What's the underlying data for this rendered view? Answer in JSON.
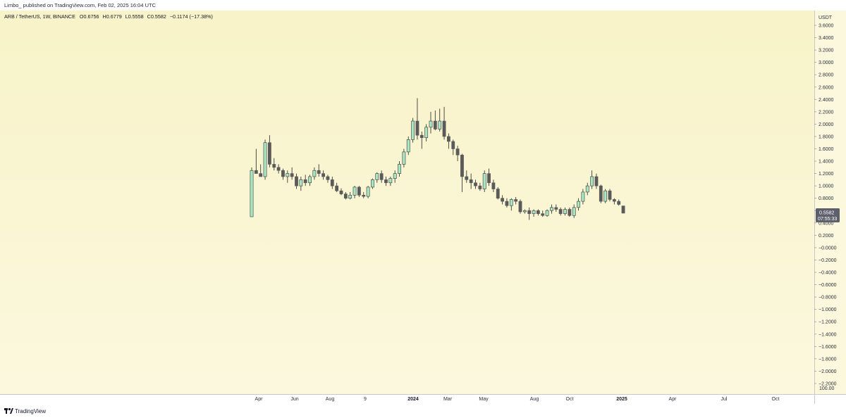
{
  "header": {
    "published": "Limbo_ published on TradingView.com, Feb 02, 2025 16:04 UTC",
    "symbol_line": "ARB / TetherUS, 1W, BINANCE",
    "ohlc": {
      "o_label": "O",
      "o": "0.6756",
      "h_label": "H",
      "h": "0.6779",
      "l_label": "L",
      "l": "0.5558",
      "c_label": "C",
      "c": "0.5582",
      "change": "−0.1174 (−17.38%)"
    }
  },
  "price_axis": {
    "unit": "USDT",
    "ticks": [
      "3.6000",
      "3.4000",
      "3.2000",
      "3.0000",
      "2.8000",
      "2.6000",
      "2.4000",
      "2.2000",
      "2.0000",
      "1.8000",
      "1.6000",
      "1.4000",
      "1.2000",
      "1.0000",
      "0.8000",
      "0.6000",
      "0.4000",
      "0.2000",
      "−0.0000",
      "−0.2000",
      "−0.4000",
      "−0.6000",
      "−0.8000",
      "−1.0000",
      "−1.2000",
      "−1.4000",
      "−1.6000",
      "−1.8000",
      "−2.0000",
      "−2.2000"
    ],
    "bottom_label": "100.00",
    "last_price": "0.5582",
    "countdown": "07:55:33"
  },
  "time_axis": {
    "labels": [
      {
        "text": "Apr",
        "bold": false
      },
      {
        "text": "Jun",
        "bold": false
      },
      {
        "text": "Aug",
        "bold": false
      },
      {
        "text": "9",
        "bold": false
      },
      {
        "text": "2024",
        "bold": true
      },
      {
        "text": "Mar",
        "bold": false
      },
      {
        "text": "May",
        "bold": false
      },
      {
        "text": "Aug",
        "bold": false
      },
      {
        "text": "Oct",
        "bold": false
      },
      {
        "text": "2025",
        "bold": true
      },
      {
        "text": "Apr",
        "bold": false
      },
      {
        "text": "Jul",
        "bold": false
      },
      {
        "text": "Oct",
        "bold": false
      }
    ]
  },
  "branding": {
    "logo_text": "TradingView"
  },
  "colors": {
    "up": "#a8e6c3",
    "up_border": "#3a3a3a",
    "down": "#5a5a5a",
    "wick": "#3a3a3a",
    "price_tag": "#5d606b",
    "bg_top": "#f8f3c8",
    "bg_bottom": "#fbf8de"
  },
  "chart_data": {
    "type": "candlestick",
    "title": "ARB / TetherUS, 1W, BINANCE",
    "ylabel": "USDT",
    "ylim": [
      -2.2,
      3.6
    ],
    "candles": [
      {
        "o": 0.5,
        "h": 1.3,
        "l": 0.5,
        "c": 1.25
      },
      {
        "o": 1.25,
        "h": 1.6,
        "l": 1.2,
        "c": 1.2
      },
      {
        "o": 1.2,
        "h": 1.35,
        "l": 1.15,
        "c": 1.15
      },
      {
        "o": 1.15,
        "h": 1.75,
        "l": 1.1,
        "c": 1.7
      },
      {
        "o": 1.7,
        "h": 1.82,
        "l": 1.3,
        "c": 1.35
      },
      {
        "o": 1.35,
        "h": 1.45,
        "l": 1.25,
        "c": 1.3
      },
      {
        "o": 1.3,
        "h": 1.35,
        "l": 1.2,
        "c": 1.25
      },
      {
        "o": 1.25,
        "h": 1.28,
        "l": 1.1,
        "c": 1.15
      },
      {
        "o": 1.15,
        "h": 1.25,
        "l": 1.05,
        "c": 1.2
      },
      {
        "o": 1.2,
        "h": 1.3,
        "l": 1.1,
        "c": 1.15
      },
      {
        "o": 1.15,
        "h": 1.2,
        "l": 0.95,
        "c": 1.0
      },
      {
        "o": 1.0,
        "h": 1.15,
        "l": 0.92,
        "c": 1.1
      },
      {
        "o": 1.1,
        "h": 1.18,
        "l": 1.0,
        "c": 1.05
      },
      {
        "o": 1.05,
        "h": 1.18,
        "l": 1.0,
        "c": 1.15
      },
      {
        "o": 1.15,
        "h": 1.3,
        "l": 1.1,
        "c": 1.25
      },
      {
        "o": 1.25,
        "h": 1.35,
        "l": 1.15,
        "c": 1.2
      },
      {
        "o": 1.2,
        "h": 1.25,
        "l": 1.1,
        "c": 1.15
      },
      {
        "o": 1.15,
        "h": 1.18,
        "l": 1.05,
        "c": 1.1
      },
      {
        "o": 1.1,
        "h": 1.15,
        "l": 0.95,
        "c": 1.0
      },
      {
        "o": 1.0,
        "h": 1.05,
        "l": 0.9,
        "c": 0.92
      },
      {
        "o": 0.92,
        "h": 0.96,
        "l": 0.85,
        "c": 0.87
      },
      {
        "o": 0.87,
        "h": 0.9,
        "l": 0.78,
        "c": 0.8
      },
      {
        "o": 0.8,
        "h": 0.9,
        "l": 0.78,
        "c": 0.85
      },
      {
        "o": 0.85,
        "h": 1.0,
        "l": 0.8,
        "c": 0.98
      },
      {
        "o": 0.98,
        "h": 1.0,
        "l": 0.82,
        "c": 0.85
      },
      {
        "o": 0.85,
        "h": 0.9,
        "l": 0.8,
        "c": 0.83
      },
      {
        "o": 0.83,
        "h": 1.0,
        "l": 0.8,
        "c": 0.98
      },
      {
        "o": 0.98,
        "h": 1.12,
        "l": 0.95,
        "c": 1.1
      },
      {
        "o": 1.1,
        "h": 1.22,
        "l": 1.05,
        "c": 1.2
      },
      {
        "o": 1.2,
        "h": 1.25,
        "l": 1.05,
        "c": 1.1
      },
      {
        "o": 1.1,
        "h": 1.15,
        "l": 1.0,
        "c": 1.05
      },
      {
        "o": 1.05,
        "h": 1.15,
        "l": 1.0,
        "c": 1.12
      },
      {
        "o": 1.12,
        "h": 1.25,
        "l": 1.05,
        "c": 1.2
      },
      {
        "o": 1.2,
        "h": 1.4,
        "l": 1.15,
        "c": 1.35
      },
      {
        "o": 1.35,
        "h": 1.6,
        "l": 1.3,
        "c": 1.55
      },
      {
        "o": 1.55,
        "h": 1.8,
        "l": 1.5,
        "c": 1.75
      },
      {
        "o": 1.75,
        "h": 2.1,
        "l": 1.7,
        "c": 2.05
      },
      {
        "o": 2.05,
        "h": 2.42,
        "l": 1.75,
        "c": 1.82
      },
      {
        "o": 1.82,
        "h": 1.88,
        "l": 1.6,
        "c": 1.78
      },
      {
        "o": 1.78,
        "h": 2.0,
        "l": 1.72,
        "c": 1.95
      },
      {
        "o": 1.95,
        "h": 2.2,
        "l": 1.85,
        "c": 2.05
      },
      {
        "o": 2.05,
        "h": 2.22,
        "l": 1.9,
        "c": 1.92
      },
      {
        "o": 1.92,
        "h": 2.25,
        "l": 1.88,
        "c": 2.05
      },
      {
        "o": 2.05,
        "h": 2.28,
        "l": 1.75,
        "c": 1.8
      },
      {
        "o": 1.8,
        "h": 1.85,
        "l": 1.6,
        "c": 1.72
      },
      {
        "o": 1.72,
        "h": 1.75,
        "l": 1.5,
        "c": 1.6
      },
      {
        "o": 1.6,
        "h": 1.65,
        "l": 1.4,
        "c": 1.5
      },
      {
        "o": 1.5,
        "h": 1.52,
        "l": 0.9,
        "c": 1.15
      },
      {
        "o": 1.15,
        "h": 1.25,
        "l": 1.05,
        "c": 1.1
      },
      {
        "o": 1.1,
        "h": 1.2,
        "l": 0.95,
        "c": 1.05
      },
      {
        "o": 1.05,
        "h": 1.1,
        "l": 0.95,
        "c": 1.0
      },
      {
        "o": 1.0,
        "h": 1.05,
        "l": 0.92,
        "c": 0.95
      },
      {
        "o": 0.95,
        "h": 1.25,
        "l": 0.9,
        "c": 1.2
      },
      {
        "o": 1.2,
        "h": 1.28,
        "l": 1.0,
        "c": 1.05
      },
      {
        "o": 1.05,
        "h": 1.1,
        "l": 0.9,
        "c": 0.95
      },
      {
        "o": 0.95,
        "h": 0.98,
        "l": 0.78,
        "c": 0.8
      },
      {
        "o": 0.8,
        "h": 0.85,
        "l": 0.7,
        "c": 0.75
      },
      {
        "o": 0.75,
        "h": 0.8,
        "l": 0.65,
        "c": 0.68
      },
      {
        "o": 0.68,
        "h": 0.8,
        "l": 0.6,
        "c": 0.78
      },
      {
        "o": 0.78,
        "h": 0.82,
        "l": 0.7,
        "c": 0.75
      },
      {
        "o": 0.75,
        "h": 0.78,
        "l": 0.55,
        "c": 0.58
      },
      {
        "o": 0.58,
        "h": 0.62,
        "l": 0.55,
        "c": 0.6
      },
      {
        "o": 0.6,
        "h": 0.65,
        "l": 0.45,
        "c": 0.55
      },
      {
        "o": 0.55,
        "h": 0.62,
        "l": 0.5,
        "c": 0.6
      },
      {
        "o": 0.6,
        "h": 0.62,
        "l": 0.52,
        "c": 0.55
      },
      {
        "o": 0.55,
        "h": 0.6,
        "l": 0.5,
        "c": 0.52
      },
      {
        "o": 0.52,
        "h": 0.62,
        "l": 0.5,
        "c": 0.6
      },
      {
        "o": 0.6,
        "h": 0.7,
        "l": 0.55,
        "c": 0.65
      },
      {
        "o": 0.65,
        "h": 0.7,
        "l": 0.58,
        "c": 0.62
      },
      {
        "o": 0.62,
        "h": 0.65,
        "l": 0.52,
        "c": 0.55
      },
      {
        "o": 0.55,
        "h": 0.65,
        "l": 0.52,
        "c": 0.62
      },
      {
        "o": 0.62,
        "h": 0.65,
        "l": 0.5,
        "c": 0.52
      },
      {
        "o": 0.52,
        "h": 0.7,
        "l": 0.48,
        "c": 0.65
      },
      {
        "o": 0.65,
        "h": 0.8,
        "l": 0.6,
        "c": 0.75
      },
      {
        "o": 0.75,
        "h": 0.95,
        "l": 0.7,
        "c": 0.9
      },
      {
        "o": 0.9,
        "h": 1.05,
        "l": 0.85,
        "c": 1.0
      },
      {
        "o": 1.0,
        "h": 1.25,
        "l": 0.95,
        "c": 1.15
      },
      {
        "o": 1.15,
        "h": 1.2,
        "l": 0.95,
        "c": 1.0
      },
      {
        "o": 1.0,
        "h": 1.02,
        "l": 0.72,
        "c": 0.75
      },
      {
        "o": 0.75,
        "h": 0.95,
        "l": 0.72,
        "c": 0.92
      },
      {
        "o": 0.92,
        "h": 0.95,
        "l": 0.75,
        "c": 0.78
      },
      {
        "o": 0.78,
        "h": 0.8,
        "l": 0.7,
        "c": 0.75
      },
      {
        "o": 0.75,
        "h": 0.78,
        "l": 0.68,
        "c": 0.7
      },
      {
        "o": 0.6756,
        "h": 0.6779,
        "l": 0.5558,
        "c": 0.5582
      }
    ]
  }
}
